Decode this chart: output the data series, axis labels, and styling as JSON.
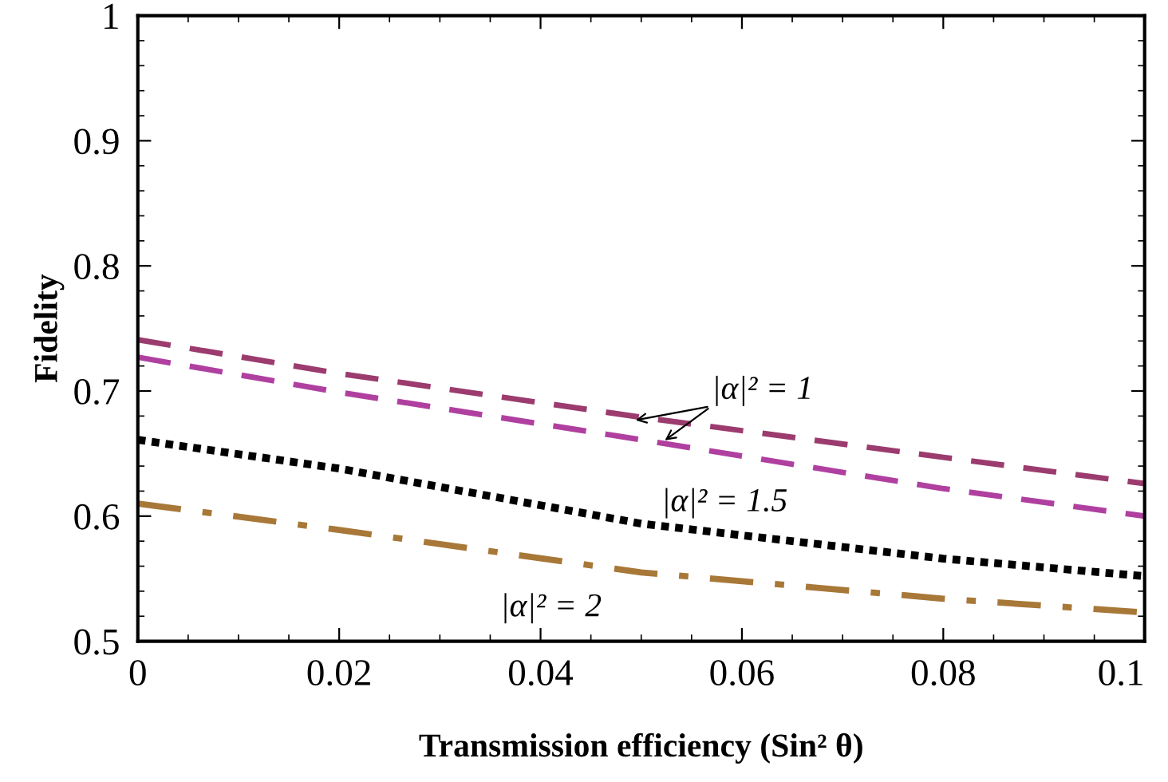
{
  "chart_data": {
    "type": "line",
    "xlabel": "Transmission efficiency (Sin² θ)",
    "ylabel": "Fidelity",
    "x": [
      0,
      0.02,
      0.05,
      0.08,
      0.1
    ],
    "series": [
      {
        "color": "#9b3b6e",
        "line_style": "dashed",
        "values": [
          0.741,
          0.714,
          0.679,
          0.647,
          0.626
        ]
      },
      {
        "color": "#b040a0",
        "line_style": "dashed",
        "values": [
          0.727,
          0.699,
          0.661,
          0.622,
          0.6
        ]
      },
      {
        "color": "#000000",
        "line_style": "dotted",
        "values": [
          0.661,
          0.638,
          0.594,
          0.566,
          0.552
        ]
      },
      {
        "color": "#a87838",
        "line_style": "dashdot",
        "values": [
          0.61,
          0.589,
          0.555,
          0.534,
          0.523
        ]
      }
    ],
    "annotations": [
      {
        "text": "|α|² = 1",
        "x": 0.049,
        "y": 0.676
      },
      "|α|² = 1.5",
      "|α|² = 2"
    ],
    "xlim": [
      0,
      0.1
    ],
    "ylim": [
      0.5,
      1
    ],
    "xticks": [
      0,
      0.02,
      0.04,
      0.06,
      0.08,
      0.1
    ],
    "yticks": [
      0.5,
      0.6,
      0.7,
      0.8,
      0.9,
      {
        "value": 1,
        "label": "1"
      }
    ],
    "grid": false,
    "legend": false
  }
}
